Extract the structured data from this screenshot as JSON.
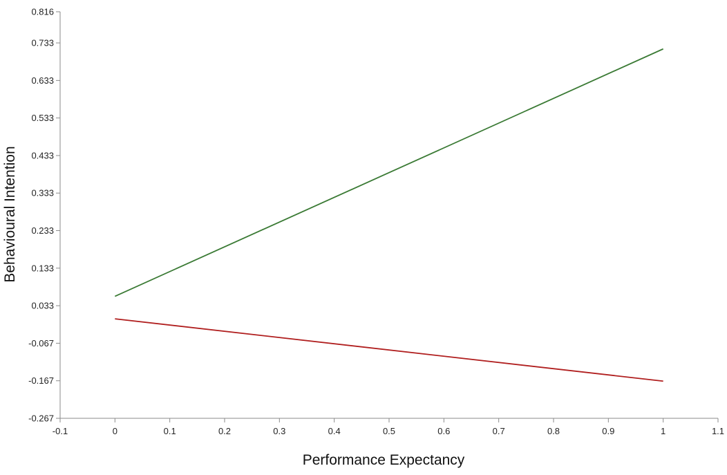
{
  "chart_data": {
    "type": "line",
    "title": "",
    "xlabel": "Performance Expectancy",
    "ylabel": "Behavioural Intention",
    "xlim": [
      -0.1,
      1.1
    ],
    "ylim": [
      -0.267,
      0.816
    ],
    "x_ticks": [
      -0.1,
      0,
      0.1,
      0.2,
      0.3,
      0.4,
      0.5,
      0.6,
      0.7,
      0.8,
      0.9,
      1,
      1.1
    ],
    "x_tick_labels": [
      "-0.1",
      "0",
      "0.1",
      "0.2",
      "0.3",
      "0.4",
      "0.5",
      "0.6",
      "0.7",
      "0.8",
      "0.9",
      "1",
      "1.1"
    ],
    "y_ticks": [
      0.816,
      0.733,
      0.633,
      0.533,
      0.433,
      0.333,
      0.233,
      0.133,
      0.033,
      -0.067,
      -0.167,
      -0.267
    ],
    "y_tick_labels": [
      "0.816",
      "0.733",
      "0.633",
      "0.533",
      "0.433",
      "0.333",
      "0.233",
      "0.133",
      "0.033",
      "-0.067",
      "-0.167",
      "-0.267"
    ],
    "grid": false,
    "legend": "none",
    "series": [
      {
        "color": "#3a7a34",
        "x": [
          0,
          1
        ],
        "y": [
          0.058,
          0.717
        ]
      },
      {
        "color": "#b01e1e",
        "x": [
          0,
          1
        ],
        "y": [
          -0.002,
          -0.168
        ]
      }
    ]
  }
}
